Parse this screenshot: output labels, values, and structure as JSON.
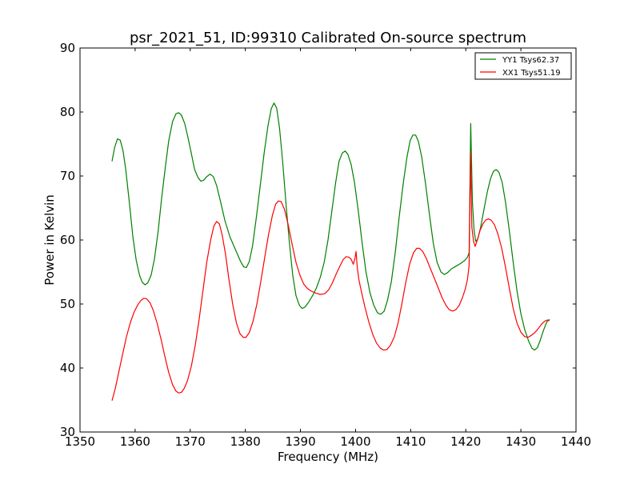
{
  "chart_data": {
    "type": "line",
    "title": "psr_2021_51, ID:99310 Calibrated On-source spectrum",
    "xlabel": "Frequency (MHz)",
    "ylabel": "Power in Kelvin",
    "xlim": [
      1350,
      1440
    ],
    "ylim": [
      30,
      90
    ],
    "xticks": [
      1350,
      1360,
      1370,
      1380,
      1390,
      1400,
      1410,
      1420,
      1430,
      1440
    ],
    "yticks": [
      30,
      40,
      50,
      60,
      70,
      80,
      90
    ],
    "grid": false,
    "legend_position": "top-right",
    "series": [
      {
        "name": "YY1 Tsys62.37",
        "color": "#008000",
        "points": [
          [
            1355.8,
            72.3
          ],
          [
            1356.3,
            74.5
          ],
          [
            1356.8,
            75.8
          ],
          [
            1357.3,
            75.6
          ],
          [
            1357.8,
            74.0
          ],
          [
            1358.3,
            71.0
          ],
          [
            1359.0,
            65.5
          ],
          [
            1359.6,
            60.5
          ],
          [
            1360.2,
            56.8
          ],
          [
            1360.8,
            54.5
          ],
          [
            1361.3,
            53.4
          ],
          [
            1361.8,
            53.0
          ],
          [
            1362.3,
            53.3
          ],
          [
            1362.9,
            54.5
          ],
          [
            1363.5,
            57.0
          ],
          [
            1364.2,
            61.5
          ],
          [
            1364.8,
            66.5
          ],
          [
            1365.5,
            71.5
          ],
          [
            1366.1,
            75.5
          ],
          [
            1366.8,
            78.5
          ],
          [
            1367.4,
            79.7
          ],
          [
            1367.9,
            79.9
          ],
          [
            1368.4,
            79.5
          ],
          [
            1369.0,
            78.2
          ],
          [
            1369.6,
            76.0
          ],
          [
            1370.2,
            73.5
          ],
          [
            1370.8,
            71.0
          ],
          [
            1371.4,
            69.8
          ],
          [
            1371.9,
            69.2
          ],
          [
            1372.4,
            69.3
          ],
          [
            1373.0,
            69.9
          ],
          [
            1373.6,
            70.3
          ],
          [
            1374.2,
            69.9
          ],
          [
            1374.8,
            68.5
          ],
          [
            1375.5,
            66.0
          ],
          [
            1376.3,
            63.0
          ],
          [
            1377.2,
            60.5
          ],
          [
            1378.2,
            58.5
          ],
          [
            1379.1,
            56.7
          ],
          [
            1379.7,
            55.8
          ],
          [
            1380.2,
            55.7
          ],
          [
            1380.7,
            56.6
          ],
          [
            1381.3,
            59.0
          ],
          [
            1382.0,
            63.5
          ],
          [
            1382.7,
            68.5
          ],
          [
            1383.4,
            73.5
          ],
          [
            1384.1,
            77.8
          ],
          [
            1384.7,
            80.5
          ],
          [
            1385.2,
            81.4
          ],
          [
            1385.7,
            80.6
          ],
          [
            1386.2,
            77.5
          ],
          [
            1386.8,
            72.0
          ],
          [
            1387.4,
            65.5
          ],
          [
            1388.0,
            59.5
          ],
          [
            1388.6,
            54.5
          ],
          [
            1389.2,
            51.3
          ],
          [
            1389.8,
            49.8
          ],
          [
            1390.3,
            49.3
          ],
          [
            1390.8,
            49.5
          ],
          [
            1391.5,
            50.3
          ],
          [
            1392.2,
            51.3
          ],
          [
            1392.9,
            52.5
          ],
          [
            1393.6,
            54.2
          ],
          [
            1394.3,
            56.5
          ],
          [
            1395.0,
            60.0
          ],
          [
            1395.7,
            64.5
          ],
          [
            1396.4,
            69.0
          ],
          [
            1397.0,
            72.3
          ],
          [
            1397.6,
            73.6
          ],
          [
            1398.1,
            73.9
          ],
          [
            1398.6,
            73.4
          ],
          [
            1399.2,
            71.8
          ],
          [
            1399.8,
            69.0
          ],
          [
            1400.5,
            64.5
          ],
          [
            1401.2,
            59.5
          ],
          [
            1401.9,
            55.0
          ],
          [
            1402.6,
            51.8
          ],
          [
            1403.3,
            49.8
          ],
          [
            1404.0,
            48.6
          ],
          [
            1404.6,
            48.4
          ],
          [
            1405.2,
            48.9
          ],
          [
            1405.8,
            50.6
          ],
          [
            1406.5,
            53.5
          ],
          [
            1407.2,
            58.0
          ],
          [
            1407.9,
            63.5
          ],
          [
            1408.6,
            68.5
          ],
          [
            1409.3,
            72.8
          ],
          [
            1409.9,
            75.5
          ],
          [
            1410.4,
            76.4
          ],
          [
            1410.9,
            76.4
          ],
          [
            1411.4,
            75.4
          ],
          [
            1412.0,
            73.0
          ],
          [
            1412.7,
            68.8
          ],
          [
            1413.4,
            64.0
          ],
          [
            1414.1,
            59.5
          ],
          [
            1414.8,
            56.5
          ],
          [
            1415.5,
            55.0
          ],
          [
            1416.1,
            54.6
          ],
          [
            1416.7,
            54.9
          ],
          [
            1417.4,
            55.5
          ],
          [
            1418.2,
            55.9
          ],
          [
            1419.0,
            56.3
          ],
          [
            1419.8,
            56.8
          ],
          [
            1420.3,
            57.3
          ],
          [
            1420.6,
            58.0
          ],
          [
            1420.9,
            78.2
          ],
          [
            1421.2,
            66.0
          ],
          [
            1421.5,
            61.5
          ],
          [
            1421.8,
            59.8
          ],
          [
            1422.2,
            60.2
          ],
          [
            1422.7,
            62.0
          ],
          [
            1423.3,
            64.8
          ],
          [
            1423.9,
            67.5
          ],
          [
            1424.5,
            69.6
          ],
          [
            1425.0,
            70.7
          ],
          [
            1425.5,
            71.0
          ],
          [
            1426.0,
            70.6
          ],
          [
            1426.6,
            69.0
          ],
          [
            1427.2,
            66.0
          ],
          [
            1427.9,
            61.5
          ],
          [
            1428.6,
            56.5
          ],
          [
            1429.3,
            52.0
          ],
          [
            1430.0,
            48.5
          ],
          [
            1430.7,
            46.0
          ],
          [
            1431.4,
            44.2
          ],
          [
            1432.0,
            43.1
          ],
          [
            1432.5,
            42.8
          ],
          [
            1433.0,
            43.2
          ],
          [
            1433.5,
            44.3
          ],
          [
            1434.1,
            45.9
          ],
          [
            1434.7,
            47.2
          ],
          [
            1435.2,
            47.6
          ]
        ]
      },
      {
        "name": "XX1 Tsys51.19",
        "color": "#ff0000",
        "points": [
          [
            1355.8,
            34.9
          ],
          [
            1356.4,
            36.8
          ],
          [
            1357.0,
            39.2
          ],
          [
            1357.7,
            42.0
          ],
          [
            1358.4,
            44.8
          ],
          [
            1359.1,
            47.0
          ],
          [
            1359.8,
            48.7
          ],
          [
            1360.5,
            49.9
          ],
          [
            1361.1,
            50.6
          ],
          [
            1361.6,
            50.9
          ],
          [
            1362.1,
            50.8
          ],
          [
            1362.7,
            50.2
          ],
          [
            1363.3,
            49.0
          ],
          [
            1364.0,
            47.0
          ],
          [
            1364.7,
            44.5
          ],
          [
            1365.4,
            41.8
          ],
          [
            1366.1,
            39.3
          ],
          [
            1366.8,
            37.4
          ],
          [
            1367.4,
            36.4
          ],
          [
            1367.9,
            36.1
          ],
          [
            1368.4,
            36.2
          ],
          [
            1368.9,
            36.8
          ],
          [
            1369.5,
            38.0
          ],
          [
            1370.2,
            40.3
          ],
          [
            1370.9,
            43.5
          ],
          [
            1371.6,
            47.5
          ],
          [
            1372.3,
            52.0
          ],
          [
            1373.0,
            56.5
          ],
          [
            1373.7,
            60.0
          ],
          [
            1374.3,
            62.2
          ],
          [
            1374.8,
            62.9
          ],
          [
            1375.3,
            62.5
          ],
          [
            1375.8,
            60.8
          ],
          [
            1376.4,
            57.8
          ],
          [
            1377.0,
            54.0
          ],
          [
            1377.7,
            50.0
          ],
          [
            1378.4,
            47.0
          ],
          [
            1379.0,
            45.4
          ],
          [
            1379.6,
            44.8
          ],
          [
            1380.1,
            44.8
          ],
          [
            1380.7,
            45.5
          ],
          [
            1381.4,
            47.3
          ],
          [
            1382.1,
            50.0
          ],
          [
            1382.8,
            53.5
          ],
          [
            1383.5,
            57.2
          ],
          [
            1384.2,
            60.8
          ],
          [
            1384.9,
            63.8
          ],
          [
            1385.5,
            65.6
          ],
          [
            1386.0,
            66.1
          ],
          [
            1386.5,
            66.0
          ],
          [
            1387.1,
            64.8
          ],
          [
            1387.8,
            62.3
          ],
          [
            1388.5,
            59.3
          ],
          [
            1389.2,
            56.5
          ],
          [
            1389.9,
            54.5
          ],
          [
            1390.6,
            53.1
          ],
          [
            1391.3,
            52.4
          ],
          [
            1392.0,
            52.0
          ],
          [
            1392.8,
            51.7
          ],
          [
            1393.6,
            51.5
          ],
          [
            1394.4,
            51.6
          ],
          [
            1395.1,
            52.2
          ],
          [
            1395.8,
            53.3
          ],
          [
            1396.5,
            54.7
          ],
          [
            1397.2,
            56.0
          ],
          [
            1397.8,
            57.0
          ],
          [
            1398.3,
            57.4
          ],
          [
            1398.8,
            57.3
          ],
          [
            1399.2,
            57.0
          ],
          [
            1399.6,
            56.2
          ],
          [
            1399.9,
            57.2
          ],
          [
            1400.1,
            58.2
          ],
          [
            1400.3,
            55.8
          ],
          [
            1400.6,
            53.8
          ],
          [
            1401.1,
            51.8
          ],
          [
            1401.7,
            49.5
          ],
          [
            1402.4,
            47.2
          ],
          [
            1403.1,
            45.3
          ],
          [
            1403.8,
            43.9
          ],
          [
            1404.5,
            43.1
          ],
          [
            1405.1,
            42.8
          ],
          [
            1405.7,
            42.9
          ],
          [
            1406.3,
            43.5
          ],
          [
            1407.0,
            44.8
          ],
          [
            1407.7,
            47.0
          ],
          [
            1408.4,
            50.0
          ],
          [
            1409.1,
            53.3
          ],
          [
            1409.8,
            56.2
          ],
          [
            1410.5,
            58.0
          ],
          [
            1411.1,
            58.7
          ],
          [
            1411.6,
            58.7
          ],
          [
            1412.2,
            58.2
          ],
          [
            1412.9,
            57.0
          ],
          [
            1413.6,
            55.5
          ],
          [
            1414.3,
            54.0
          ],
          [
            1415.0,
            52.5
          ],
          [
            1415.7,
            51.0
          ],
          [
            1416.4,
            49.8
          ],
          [
            1417.0,
            49.1
          ],
          [
            1417.6,
            48.9
          ],
          [
            1418.2,
            49.1
          ],
          [
            1418.8,
            49.8
          ],
          [
            1419.4,
            51.0
          ],
          [
            1419.9,
            52.3
          ],
          [
            1420.3,
            53.8
          ],
          [
            1420.6,
            56.0
          ],
          [
            1420.85,
            73.8
          ],
          [
            1421.1,
            62.0
          ],
          [
            1421.4,
            59.8
          ],
          [
            1421.7,
            59.0
          ],
          [
            1422.1,
            60.0
          ],
          [
            1422.6,
            61.5
          ],
          [
            1423.1,
            62.5
          ],
          [
            1423.6,
            63.1
          ],
          [
            1424.1,
            63.3
          ],
          [
            1424.6,
            63.1
          ],
          [
            1425.2,
            62.4
          ],
          [
            1425.8,
            61.0
          ],
          [
            1426.5,
            58.8
          ],
          [
            1427.2,
            55.8
          ],
          [
            1427.9,
            52.5
          ],
          [
            1428.6,
            49.3
          ],
          [
            1429.3,
            47.0
          ],
          [
            1430.0,
            45.6
          ],
          [
            1430.7,
            44.9
          ],
          [
            1431.3,
            44.8
          ],
          [
            1431.9,
            45.1
          ],
          [
            1432.5,
            45.5
          ],
          [
            1433.1,
            46.1
          ],
          [
            1433.7,
            46.8
          ],
          [
            1434.3,
            47.3
          ],
          [
            1434.8,
            47.5
          ],
          [
            1435.2,
            47.4
          ]
        ]
      }
    ]
  }
}
